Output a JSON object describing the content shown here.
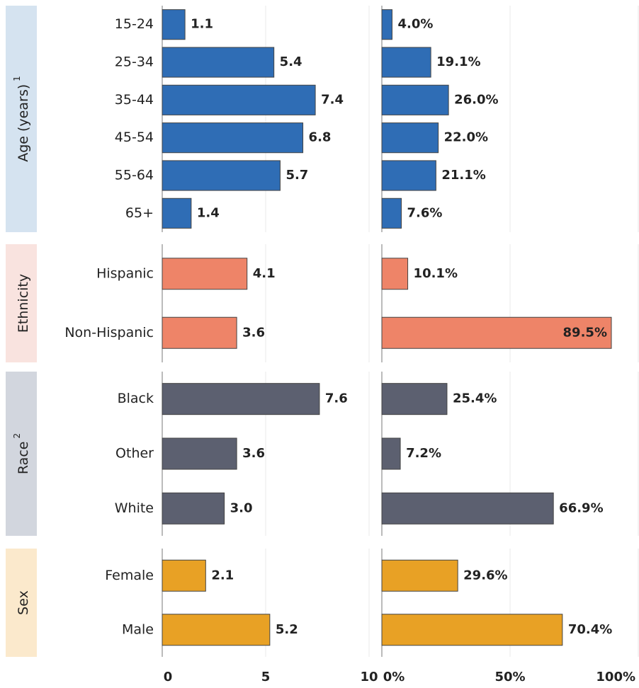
{
  "chart_data": {
    "type": "bar",
    "orientation": "horizontal",
    "xlim": [
      0,
      10
    ],
    "xticks": [
      0,
      5,
      10
    ],
    "x2lim": [
      0,
      100
    ],
    "x2ticks": [
      {
        "value": 0,
        "label": "0%"
      },
      {
        "value": 50,
        "label": "50%"
      },
      {
        "value": 100,
        "label": "100%"
      }
    ],
    "grid": true,
    "groups": [
      {
        "name": "Age (years)",
        "note": "1",
        "color": "#2f6db5",
        "band_color": "#d5e3f0",
        "categories": [
          "15-24",
          "25-34",
          "35-44",
          "45-54",
          "55-64",
          "65+"
        ],
        "values": [
          1.1,
          5.4,
          7.4,
          6.8,
          5.7,
          1.4
        ],
        "value_labels": [
          "1.1",
          "5.4",
          "7.4",
          "6.8",
          "5.7",
          "1.4"
        ],
        "shares": [
          4.0,
          19.1,
          26.0,
          22.0,
          21.1,
          7.6
        ],
        "share_labels": [
          "4.0%",
          "19.1%",
          "26.0%",
          "22.0%",
          "21.1%",
          "7.6%"
        ]
      },
      {
        "name": "Ethnicity",
        "color": "#ee8468",
        "band_color": "#f9e3df",
        "categories": [
          "Hispanic",
          "Non-Hispanic"
        ],
        "values": [
          4.1,
          3.6
        ],
        "value_labels": [
          "4.1",
          "3.6"
        ],
        "shares": [
          10.1,
          89.5
        ],
        "share_labels": [
          "10.1%",
          "89.5%"
        ]
      },
      {
        "name": "Race",
        "note": "2",
        "color": "#5c6070",
        "band_color": "#d2d6de",
        "categories": [
          "Black",
          "Other",
          "White"
        ],
        "values": [
          7.6,
          3.6,
          3.0
        ],
        "value_labels": [
          "7.6",
          "3.6",
          "3.0"
        ],
        "shares": [
          25.4,
          7.2,
          66.9
        ],
        "share_labels": [
          "25.4%",
          "7.2%",
          "66.9%"
        ]
      },
      {
        "name": "Sex",
        "color": "#e8a125",
        "band_color": "#fbe9cc",
        "categories": [
          "Female",
          "Male"
        ],
        "values": [
          2.1,
          5.2
        ],
        "value_labels": [
          "2.1",
          "5.2"
        ],
        "shares": [
          29.6,
          70.4
        ],
        "share_labels": [
          "29.6%",
          "70.4%"
        ]
      }
    ]
  }
}
